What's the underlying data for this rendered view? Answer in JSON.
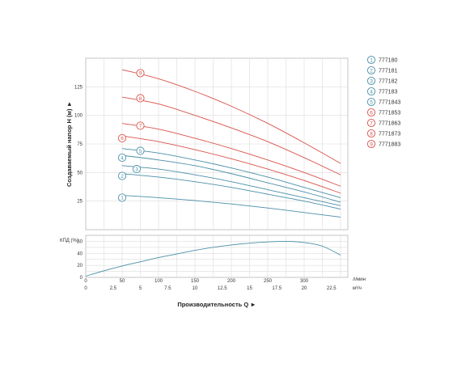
{
  "chart_data": [
    {
      "type": "line",
      "ylabel": "Создаваемый напор H (м) ►",
      "ylim": [
        0,
        150
      ],
      "yticks": [
        25,
        50,
        75,
        100,
        125
      ],
      "xlim": [
        0,
        360
      ],
      "grid": true,
      "legend_position": "right",
      "colors": {
        "blue": "#4a8fa8",
        "red": "#d9524a"
      },
      "series": [
        {
          "name": "777180",
          "marker": "1",
          "color": "blue",
          "marker_at": [
            50,
            28
          ],
          "x": [
            50,
            100,
            150,
            200,
            250,
            300,
            350
          ],
          "y": [
            30,
            28,
            25.5,
            22.5,
            19,
            15,
            11
          ]
        },
        {
          "name": "777181",
          "marker": "2",
          "color": "blue",
          "marker_at": [
            50,
            47
          ],
          "x": [
            50,
            100,
            150,
            200,
            250,
            300,
            350
          ],
          "y": [
            49,
            46,
            42,
            37,
            31,
            25,
            18
          ]
        },
        {
          "name": "777182",
          "marker": "3",
          "color": "blue",
          "marker_at": [
            70,
            53
          ],
          "x": [
            50,
            100,
            150,
            200,
            250,
            300,
            350
          ],
          "y": [
            56,
            53,
            48,
            42,
            35,
            28,
            21
          ]
        },
        {
          "name": "777183",
          "marker": "4",
          "color": "blue",
          "marker_at": [
            50,
            63
          ],
          "x": [
            50,
            100,
            150,
            200,
            250,
            300,
            350
          ],
          "y": [
            65,
            61,
            56,
            49,
            41,
            33,
            24
          ]
        },
        {
          "name": "7771843",
          "marker": "5",
          "color": "blue",
          "marker_at": [
            75,
            69
          ],
          "x": [
            50,
            100,
            150,
            200,
            250,
            300,
            350
          ],
          "y": [
            71,
            67,
            61,
            54,
            46,
            37,
            28
          ]
        },
        {
          "name": "7771853",
          "marker": "6",
          "color": "red",
          "marker_at": [
            50,
            80
          ],
          "x": [
            50,
            100,
            150,
            200,
            250,
            300,
            350
          ],
          "y": [
            82,
            77,
            70,
            62,
            53,
            43,
            32
          ]
        },
        {
          "name": "7771863",
          "marker": "7",
          "color": "red",
          "marker_at": [
            75,
            91
          ],
          "x": [
            50,
            100,
            150,
            200,
            250,
            300,
            350
          ],
          "y": [
            93,
            88,
            80,
            71,
            61,
            50,
            38
          ]
        },
        {
          "name": "7771873",
          "marker": "8",
          "color": "red",
          "marker_at": [
            75,
            115
          ],
          "x": [
            50,
            100,
            150,
            200,
            250,
            300,
            350
          ],
          "y": [
            116,
            110,
            100,
            89,
            77,
            63,
            48
          ]
        },
        {
          "name": "7771883",
          "marker": "9",
          "color": "red",
          "marker_at": [
            75,
            137
          ],
          "x": [
            50,
            100,
            150,
            200,
            250,
            300,
            350
          ],
          "y": [
            140,
            132,
            121,
            108,
            93,
            76,
            58
          ]
        }
      ]
    },
    {
      "type": "line",
      "ylabel": "КПД (%)",
      "ylim": [
        0,
        70
      ],
      "yticks": [
        0,
        20,
        40,
        60
      ],
      "grid": true,
      "x_primary": {
        "unit": "л/мин",
        "ticks": [
          0,
          50,
          100,
          150,
          200,
          250,
          300
        ],
        "lim": [
          0,
          360
        ]
      },
      "x_secondary": {
        "unit": "м³/ч",
        "ticks": [
          "0",
          "2.5",
          "5",
          "7.5",
          "10",
          "12.5",
          "15",
          "17.5",
          "20",
          "22.5"
        ],
        "lim": [
          0,
          24
        ]
      },
      "xlabel": "Производительность Q ►",
      "series": [
        {
          "name": "",
          "color": "blue",
          "x": [
            0,
            25,
            50,
            75,
            100,
            125,
            150,
            175,
            200,
            225,
            250,
            275,
            300,
            325,
            350
          ],
          "y": [
            2,
            11,
            19,
            26,
            33,
            39,
            45,
            50,
            54,
            57,
            59,
            60,
            58,
            52,
            37
          ]
        }
      ]
    }
  ]
}
